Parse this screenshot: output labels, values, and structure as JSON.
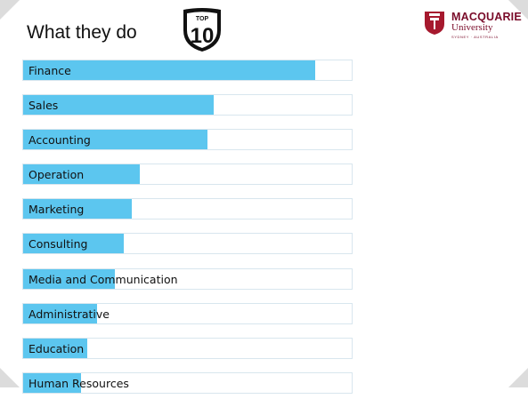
{
  "slide": {
    "title": "What they do",
    "badge": {
      "top_text": "TOP",
      "number": "10"
    },
    "logo": {
      "name": "MACQUARIE",
      "subtitle": "University",
      "tagline": "SYDNEY · AUSTRALIA"
    }
  },
  "chart_data": {
    "type": "bar",
    "orientation": "horizontal",
    "categories": [
      "Finance",
      "Sales",
      "Accounting",
      "Operation",
      "Marketing",
      "Consulting",
      "Media and Communication",
      "Administrative",
      "Education",
      "Human Resources"
    ],
    "values": [
      0.89,
      0.58,
      0.56,
      0.355,
      0.33,
      0.305,
      0.28,
      0.225,
      0.195,
      0.175
    ],
    "value_scale": "fraction of row",
    "bar_color": "#5cc6ef",
    "grid": false,
    "legend": false
  }
}
